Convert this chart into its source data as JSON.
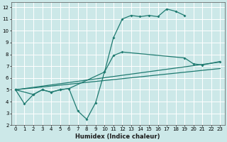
{
  "xlabel": "Humidex (Indice chaleur)",
  "bg_color": "#cce8e8",
  "grid_color": "#ffffff",
  "line_color": "#1e7a70",
  "xlim": [
    -0.5,
    23.5
  ],
  "ylim": [
    2,
    12.4
  ],
  "xticks": [
    0,
    1,
    2,
    3,
    4,
    5,
    6,
    7,
    8,
    9,
    10,
    11,
    12,
    13,
    14,
    15,
    16,
    17,
    18,
    19,
    20,
    21,
    22,
    23
  ],
  "yticks": [
    2,
    3,
    4,
    5,
    6,
    7,
    8,
    9,
    10,
    11,
    12
  ],
  "s1x": [
    0,
    1,
    2,
    3,
    4,
    5,
    6,
    7,
    8,
    9,
    10,
    11,
    12,
    13,
    14,
    15,
    16,
    17,
    18,
    19
  ],
  "s1y": [
    5.0,
    3.8,
    4.6,
    5.0,
    4.8,
    5.0,
    5.1,
    3.2,
    2.5,
    3.9,
    6.5,
    9.4,
    11.0,
    11.3,
    11.2,
    11.3,
    11.2,
    11.85,
    11.65,
    11.3
  ],
  "s2x": [
    0,
    2,
    3,
    4,
    5,
    6,
    10,
    11,
    12,
    19,
    20,
    21,
    23
  ],
  "s2y": [
    5.0,
    4.6,
    5.0,
    4.8,
    5.0,
    5.1,
    6.5,
    7.9,
    8.2,
    7.7,
    7.2,
    7.1,
    7.4
  ],
  "s3x": [
    0,
    23
  ],
  "s3y": [
    5.0,
    7.35
  ],
  "s4x": [
    0,
    23
  ],
  "s4y": [
    5.0,
    6.8
  ]
}
